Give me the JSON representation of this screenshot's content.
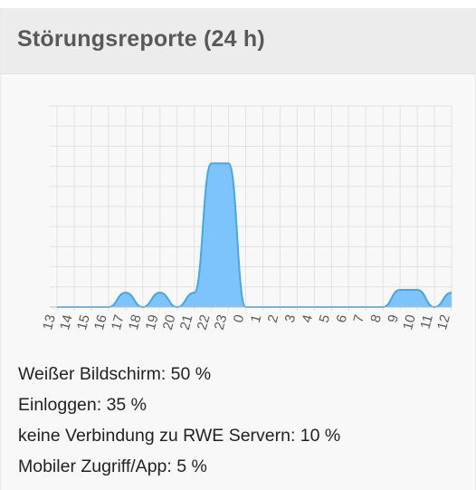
{
  "widget": {
    "title": "Störungsreporte (24 h)"
  },
  "chart_data": {
    "type": "area",
    "x": [
      "13",
      "14",
      "15",
      "16",
      "17",
      "18",
      "19",
      "20",
      "21",
      "22",
      "23",
      "0",
      "1",
      "2",
      "3",
      "4",
      "5",
      "6",
      "7",
      "8",
      "9",
      "10",
      "11",
      "12"
    ],
    "values": [
      0,
      0,
      0,
      0,
      1,
      0,
      1,
      0,
      1,
      10,
      10,
      0,
      0,
      0,
      0,
      0,
      0,
      0,
      0,
      0,
      1.2,
      1.2,
      0,
      1
    ],
    "ylim": [
      0,
      14
    ],
    "grid": true,
    "title": "",
    "xlabel": "",
    "ylabel": "",
    "fill_color": "#7cc4fb",
    "line_color": "#45a6ec"
  },
  "stats": [
    {
      "label": "Weißer Bildschirm: 50 %"
    },
    {
      "label": "Einloggen: 35 %"
    },
    {
      "label": "keine Verbindung zu RWE Servern: 10 %"
    },
    {
      "label": "Mobiler Zugriff/App: 5 %"
    }
  ]
}
